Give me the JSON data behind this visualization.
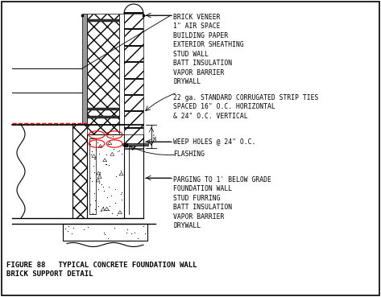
{
  "title_line1": "FIGURE 88   TYPICAL CONCRETE FOUNDATION WALL",
  "title_line2": "              BRICK SUPPORT DETAIL",
  "background_color": "#ffffff",
  "line_color": "#000000",
  "ann_brick_veneer": "BRICK VENEER\n1\" AIR SPACE\nBUILDING PAPER\nEXTERIOR SHEATHING\nSTUD WALL\nBATT INSULATION\nVAPOR BARRIER\nDRYWALL",
  "ann_strip_ties": "22 ga. STANDARD CORRUGATED STRIP TIES\nSPACED 16\" O.C. HORIZONTAL\n& 24\" O.C. VERTICAL",
  "ann_weep": "WEEP HOLES @ 24\" O.C.",
  "ann_flashing": "FLASHING",
  "ann_parging": "PARGING TO 1' BELOW GRADE\nFOUNDATION WALL\nSTUD FURRING\nBATT INSULATION\nVAPOR BARRIER\nDRYWALL",
  "figsize": [
    4.73,
    3.69
  ],
  "dpi": 100
}
